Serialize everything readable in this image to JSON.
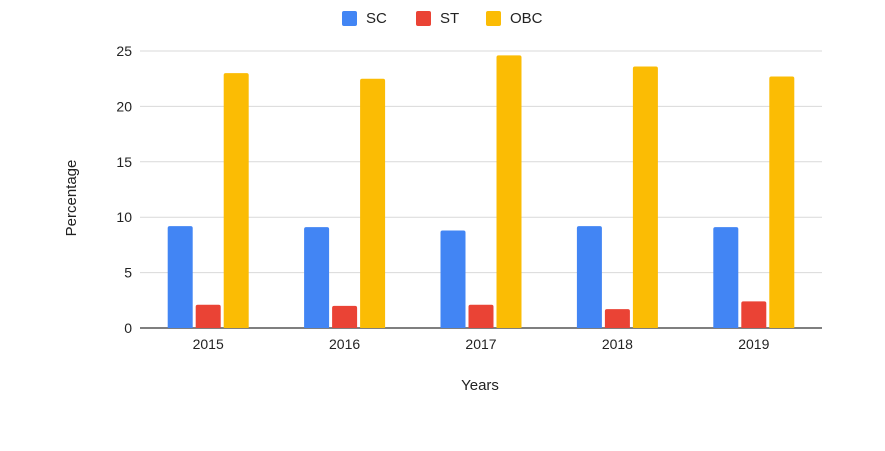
{
  "chart_data": {
    "type": "bar",
    "categories": [
      "2015",
      "2016",
      "2017",
      "2018",
      "2019"
    ],
    "series": [
      {
        "name": "SC",
        "color": "#4285F4",
        "values": [
          9.2,
          9.1,
          8.8,
          9.2,
          9.1
        ]
      },
      {
        "name": "ST",
        "color": "#EA4335",
        "values": [
          2.1,
          2.0,
          2.1,
          1.7,
          2.4
        ]
      },
      {
        "name": "OBC",
        "color": "#FBBC04",
        "values": [
          23.0,
          22.5,
          24.6,
          23.6,
          22.7
        ]
      }
    ],
    "xlabel": "Years",
    "ylabel": "Percentage",
    "ylim": [
      0,
      25
    ],
    "yticks": [
      "0",
      "5",
      "10",
      "15",
      "20",
      "25"
    ],
    "grid": true,
    "legend_position": "top"
  }
}
